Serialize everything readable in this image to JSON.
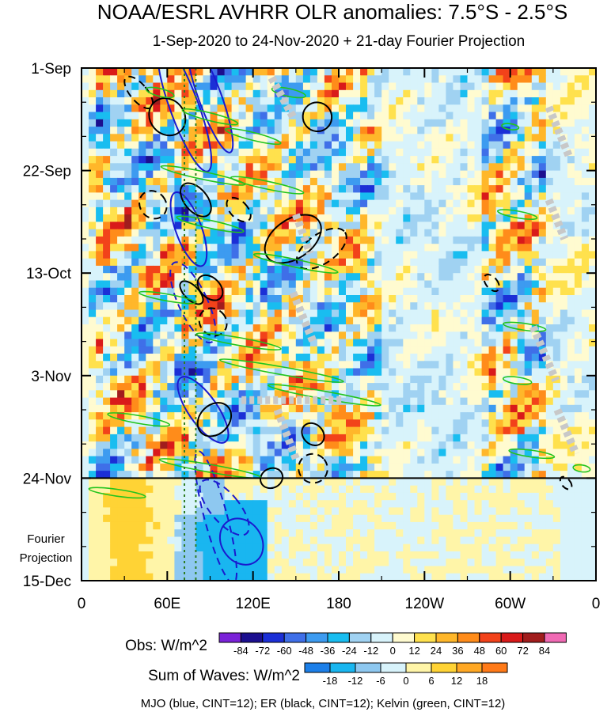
{
  "title": "NOAA/ESRL AVHRR OLR anomalies: 7.5°S - 2.5°S",
  "subtitle": "1-Sep-2020 to 24-Nov-2020 + 21-day Fourier Projection",
  "chart_data": {
    "type": "heatmap",
    "description_axes": "Hovmöller diagram: longitude (x) vs time (y, top to bottom)",
    "x_ticks": [
      "0",
      "60E",
      "120E",
      "180",
      "120W",
      "60W",
      "0"
    ],
    "x_tick_values_deg": [
      0,
      60,
      120,
      180,
      240,
      300,
      360
    ],
    "xlim_deg": [
      0,
      360
    ],
    "y_ticks": [
      "1-Sep",
      "22-Sep",
      "13-Oct",
      "3-Nov",
      "24-Nov",
      "15-Dec"
    ],
    "y_tick_values_day": [
      0,
      21,
      42,
      63,
      84,
      105
    ],
    "ylim_day": [
      0,
      105
    ],
    "observation_end_label": "24-Nov",
    "projection_label": "Fourier Projection",
    "projection_label_lines": [
      "Fourier",
      "Projection"
    ],
    "reference_lines_deg": [
      72,
      80
    ],
    "obs_colorbar": {
      "label": "Obs: W/m^2",
      "levels": [
        -84,
        -72,
        -60,
        -48,
        -36,
        -24,
        -12,
        0,
        12,
        24,
        36,
        48,
        60,
        72,
        84
      ],
      "colors": [
        "#7a22d8",
        "#1c0f8f",
        "#1b2fd6",
        "#3f6fe8",
        "#3d9bf0",
        "#19bdf0",
        "#a0d2f2",
        "#d8f3fb",
        "#fffbd0",
        "#ffe14d",
        "#ffb72a",
        "#ff8c1a",
        "#f2421a",
        "#d91a1a",
        "#a11d1d",
        "#f06ab4"
      ]
    },
    "waves_colorbar": {
      "label": "Sum of Waves: W/m^2",
      "levels": [
        -18,
        -12,
        -6,
        0,
        6,
        12,
        18
      ],
      "colors": [
        "#1c7fe8",
        "#19b6f0",
        "#8ec8f0",
        "#d8f3fb",
        "#fff5a8",
        "#ffd335",
        "#ffa824",
        "#ff7a18"
      ]
    },
    "footer": "MJO (blue, CINT=12); ER (black, CINT=12); Kelvin (green, CINT=12)",
    "series": [
      {
        "name": "MJO",
        "color": "#1a1acf"
      },
      {
        "name": "ER",
        "color": "#000000"
      },
      {
        "name": "Kelvin",
        "color": "#22c41e"
      }
    ],
    "active_bands": [
      {
        "lon": [
          10,
          95
        ],
        "strength": 1.0
      },
      {
        "lon": [
          95,
          200
        ],
        "strength": 0.85
      },
      {
        "lon": [
          200,
          275
        ],
        "strength": 0.25
      },
      {
        "lon": [
          280,
          320
        ],
        "strength": 0.9
      },
      {
        "lon": [
          320,
          360
        ],
        "strength": 0.3
      }
    ]
  }
}
